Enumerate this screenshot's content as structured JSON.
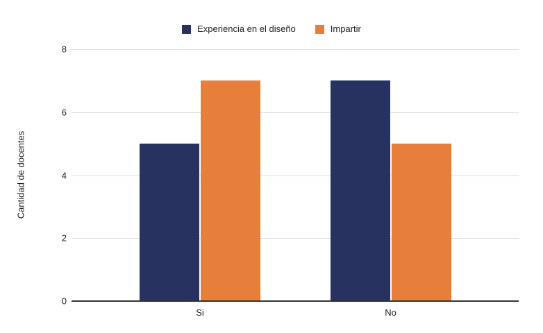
{
  "chart_data": {
    "type": "bar",
    "categories": [
      "Si",
      "No"
    ],
    "series": [
      {
        "name": "Experiencia en el diseño",
        "color": "#283261",
        "values": [
          5,
          7
        ]
      },
      {
        "name": "Impartir",
        "color": "#e77e3c",
        "values": [
          7,
          5
        ]
      }
    ],
    "ylabel": "Cantidad de docentes",
    "yticks": [
      0,
      2,
      4,
      6,
      8
    ],
    "ylim": [
      0,
      8
    ],
    "grid": true,
    "legend_position": "top",
    "colors": {
      "gridline": "#d9d9d9",
      "axis_line": "#333333",
      "text": "#222222",
      "background": "#ffffff"
    }
  }
}
